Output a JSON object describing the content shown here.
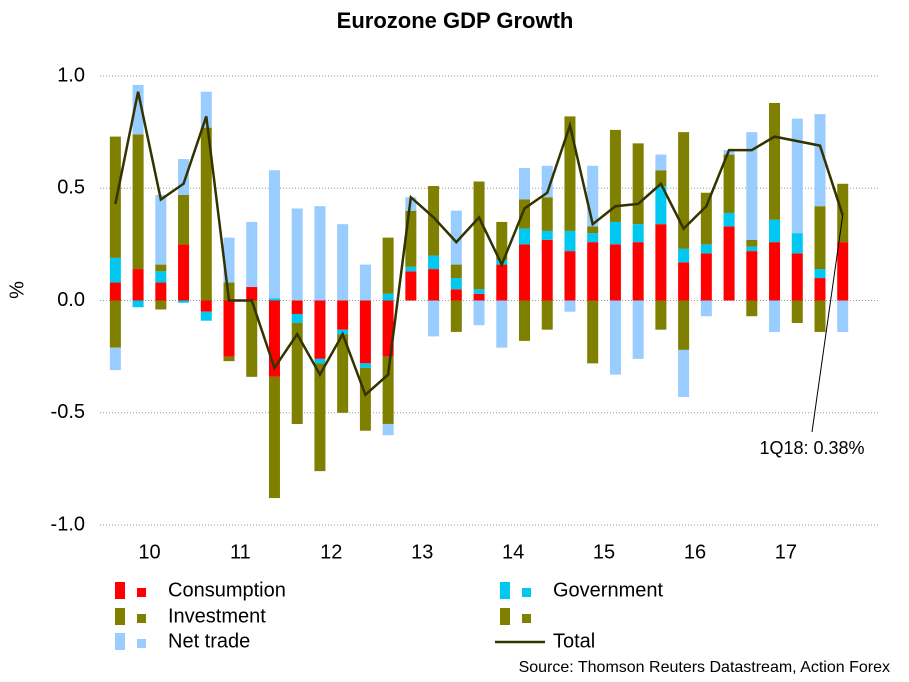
{
  "chart_data": {
    "type": "stacked-bar-line",
    "title": "Eurozone GDP Growth",
    "y_label": "%",
    "categories": [
      "10",
      null,
      null,
      null,
      "11",
      null,
      null,
      null,
      "12",
      null,
      null,
      null,
      "13",
      null,
      null,
      null,
      "14",
      null,
      null,
      null,
      "15",
      null,
      null,
      null,
      "16",
      null,
      null,
      null,
      "17",
      null,
      null,
      null,
      null
    ],
    "series": [
      {
        "name": "Consumption",
        "color": "#ff0000",
        "values": [
          0.08,
          0.14,
          0.08,
          0.25,
          -0.05,
          -0.25,
          0.06,
          -0.34,
          -0.06,
          -0.26,
          -0.13,
          -0.28,
          -0.25,
          0.13,
          0.14,
          0.05,
          0.03,
          0.16,
          0.25,
          0.27,
          0.22,
          0.26,
          0.25,
          0.26,
          0.34,
          0.17,
          0.21,
          0.33,
          0.22,
          0.26,
          0.21,
          0.1,
          0.26
        ]
      },
      {
        "name": "Government",
        "color": "#00c8f0",
        "values": [
          0.11,
          -0.03,
          0.05,
          -0.01,
          -0.04,
          0,
          0,
          0.01,
          -0.04,
          -0.02,
          -0.02,
          -0.02,
          0.03,
          0.02,
          0.06,
          0.05,
          0.02,
          0.02,
          0.07,
          0.04,
          0.09,
          0.04,
          0.1,
          0.08,
          0.17,
          0.06,
          0.04,
          0.06,
          0.02,
          0.1,
          0.09,
          0.04,
          0
        ]
      },
      {
        "name": "Investment",
        "color": "#7f7f00",
        "values": [
          0.54,
          0.6,
          0.03,
          0.22,
          0.77,
          0.08,
          0,
          0,
          0,
          0,
          0,
          0,
          0.25,
          0.25,
          0.31,
          0.06,
          0.48,
          0.17,
          0.13,
          0.15,
          0.51,
          0.03,
          0.41,
          0.36,
          0.07,
          0.52,
          0.23,
          0.26,
          0.03,
          0.52,
          0,
          0.28,
          0.26
        ]
      },
      {
        "color": "#7f7f00",
        "values": [
          -0.21,
          0,
          -0.04,
          0,
          0,
          -0.02,
          -0.34,
          -0.54,
          -0.45,
          -0.48,
          -0.35,
          -0.28,
          -0.3,
          0,
          0,
          -0.14,
          0,
          0,
          -0.18,
          -0.13,
          0,
          -0.28,
          0,
          0,
          -0.13,
          -0.22,
          0,
          0,
          -0.07,
          0,
          -0.1,
          -0.14,
          0
        ]
      },
      {
        "name": "Net trade",
        "color": "#99ccff",
        "values": [
          -0.1,
          0.22,
          0.31,
          0.16,
          0.16,
          0.2,
          0.29,
          0.57,
          0.41,
          0.42,
          0.34,
          0.16,
          -0.05,
          0.06,
          -0.16,
          0.24,
          -0.11,
          -0.21,
          0.14,
          0.14,
          -0.05,
          0.27,
          -0.33,
          -0.26,
          0.07,
          -0.21,
          -0.07,
          0.02,
          0.48,
          -0.14,
          0.51,
          0.41,
          -0.14
        ]
      }
    ],
    "total": {
      "name": "Total",
      "color": "#333300",
      "values": [
        0.43,
        0.93,
        0.45,
        0.52,
        0.82,
        0.0,
        0.0,
        -0.3,
        -0.15,
        -0.33,
        -0.15,
        -0.42,
        -0.33,
        0.46,
        0.37,
        0.26,
        0.37,
        0.16,
        0.41,
        0.48,
        0.78,
        0.34,
        0.42,
        0.43,
        0.52,
        0.32,
        0.42,
        0.67,
        0.67,
        0.73,
        0.71,
        0.69,
        0.38
      ]
    },
    "annotation": "1Q18: 0.38%",
    "ylim": [
      -1.0,
      1.0
    ],
    "yticks": [
      {
        "value": 1.0,
        "label": "1.0"
      },
      {
        "value": 0.5,
        "label": "0.5"
      },
      {
        "value": 0.0,
        "label": "0.0"
      },
      {
        "value": -0.5,
        "label": "-0.5"
      },
      {
        "value": -1.0,
        "label": "-1.0"
      }
    ],
    "grid": true,
    "source": "Source: Thomson Reuters Datastream, Action Forex"
  }
}
